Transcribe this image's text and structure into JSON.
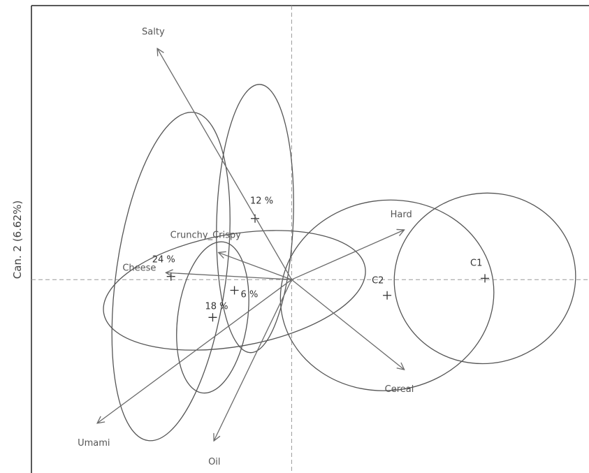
{
  "chart_data": {
    "type": "biplot",
    "ylabel": "Can. 2 (6.62%)",
    "xlim": [
      -4.55,
      5.2
    ],
    "ylim": [
      -3.07,
      4.35
    ],
    "grid": false,
    "origin_lines": true,
    "vectors": [
      {
        "name": "Salty",
        "x": -2.35,
        "y": 3.67
      },
      {
        "name": "Hard",
        "x": 1.97,
        "y": 0.79
      },
      {
        "name": "Cereal",
        "x": 1.97,
        "y": -1.43
      },
      {
        "name": "Umami",
        "x": -3.4,
        "y": -2.28
      },
      {
        "name": "Oil",
        "x": -1.36,
        "y": -2.56
      },
      {
        "name": "Cheese",
        "x": -2.2,
        "y": 0.11
      },
      {
        "name": "Crunchy_Crispy",
        "x": -1.28,
        "y": 0.43
      }
    ],
    "groups": [
      {
        "name": "12 %",
        "x": -0.64,
        "y": 0.97,
        "rx": 0.67,
        "ry": 2.13,
        "angle": 2
      },
      {
        "name": "24 %",
        "x": -2.11,
        "y": 0.05,
        "rx": 0.96,
        "ry": 2.63,
        "angle": 8
      },
      {
        "name": "6 %",
        "x": -1.0,
        "y": -0.17,
        "rx": 2.32,
        "ry": 0.89,
        "angle": -10
      },
      {
        "name": "18 %",
        "x": -1.38,
        "y": -0.6,
        "rx": 0.61,
        "ry": 1.21,
        "angle": 8
      },
      {
        "name": "C2",
        "x": 1.67,
        "y": -0.25,
        "rx": 1.87,
        "ry": 1.51,
        "angle": -8
      },
      {
        "name": "C1",
        "x": 3.38,
        "y": 0.02,
        "rx": 1.59,
        "ry": 1.35,
        "angle": -12
      }
    ]
  },
  "colors": {
    "axes": "#222222",
    "arrow": "#6a6a6a",
    "ellipse": "#555555",
    "reference_line": "#999999"
  }
}
